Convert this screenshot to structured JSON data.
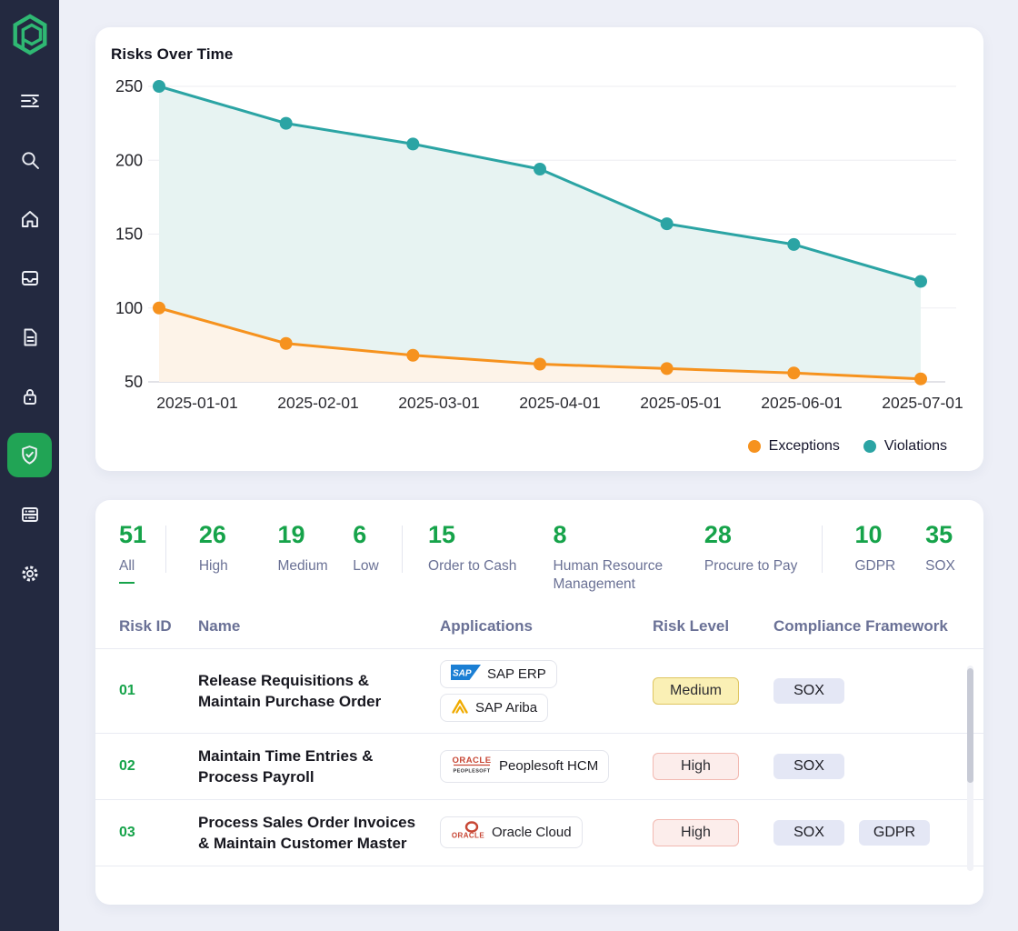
{
  "colors": {
    "sidebar_bg": "#232940",
    "active_green": "#21a455",
    "logo_green": "#2fb873",
    "stat_green": "#16a34a",
    "muted_label": "#6a7195",
    "exceptions_orange": "#f6921e",
    "violations_teal": "#2ba4a4",
    "orange_fill": "#fdf3e8",
    "teal_fill": "#e7f3f2",
    "badge_medium_bg": "#faf0b5",
    "badge_medium_border": "#dfc661",
    "badge_high_bg": "#fcedeb",
    "badge_high_border": "#f2b9b1",
    "badge_framework_bg": "#e4e7f5"
  },
  "sidebar": {
    "logo": "hexagon-logo",
    "items": [
      {
        "icon": "menu-collapse-icon",
        "active": false
      },
      {
        "icon": "search-icon",
        "active": false
      },
      {
        "icon": "home-icon",
        "active": false
      },
      {
        "icon": "inbox-icon",
        "active": false
      },
      {
        "icon": "document-icon",
        "active": false
      },
      {
        "icon": "lock-icon",
        "active": false
      },
      {
        "icon": "shield-check-icon",
        "active": true
      },
      {
        "icon": "server-list-icon",
        "active": false
      },
      {
        "icon": "settings-gear-icon",
        "active": false
      }
    ]
  },
  "chart_card": {
    "title": "Risks Over Time"
  },
  "chart_data": {
    "type": "line",
    "x": [
      "2025-01-01",
      "2025-02-01",
      "2025-03-01",
      "2025-04-01",
      "2025-05-01",
      "2025-06-01",
      "2025-07-01"
    ],
    "series": [
      {
        "name": "Violations",
        "color": "#2ba4a4",
        "fill": "#e7f3f2",
        "values": [
          250,
          225,
          211,
          194,
          157,
          143,
          118
        ]
      },
      {
        "name": "Exceptions",
        "color": "#f6921e",
        "fill": "#fdf3e8",
        "values": [
          100,
          76,
          68,
          62,
          59,
          56,
          52
        ]
      }
    ],
    "legend": [
      {
        "label": "Exceptions",
        "color": "#f6921e"
      },
      {
        "label": "Violations",
        "color": "#2ba4a4"
      }
    ],
    "ylim": [
      50,
      250
    ],
    "yticks": [
      50,
      100,
      150,
      200,
      250
    ],
    "grid": true,
    "legend_position": "bottom-right",
    "title": "Risks Over Time",
    "xlabel": "",
    "ylabel": ""
  },
  "stats": {
    "groups": [
      {
        "items": [
          {
            "value": "51",
            "label": "All",
            "active": true
          }
        ]
      },
      {
        "items": [
          {
            "value": "26",
            "label": "High"
          },
          {
            "value": "19",
            "label": "Medium"
          },
          {
            "value": "6",
            "label": "Low"
          }
        ]
      },
      {
        "items": [
          {
            "value": "15",
            "label": "Order to Cash"
          },
          {
            "value": "8",
            "label": "Human Resource Management"
          },
          {
            "value": "28",
            "label": "Procure to Pay"
          }
        ]
      },
      {
        "items": [
          {
            "value": "10",
            "label": "GDPR"
          },
          {
            "value": "35",
            "label": "SOX"
          }
        ]
      }
    ]
  },
  "table": {
    "columns": [
      "Risk ID",
      "Name",
      "Applications",
      "Risk Level",
      "Compliance Framework"
    ],
    "rows": [
      {
        "risk_id": "01",
        "name": "Release Requisitions & Maintain Purchase Order",
        "applications": [
          {
            "name": "SAP ERP",
            "logo": "sap-logo"
          },
          {
            "name": "SAP Ariba",
            "logo": "sap-ariba-logo"
          }
        ],
        "risk_level": "Medium",
        "frameworks": [
          "SOX"
        ]
      },
      {
        "risk_id": "02",
        "name": "Maintain Time Entries & Process Payroll",
        "applications": [
          {
            "name": "Peoplesoft HCM",
            "logo": "oracle-peoplesoft-logo"
          }
        ],
        "risk_level": "High",
        "frameworks": [
          "SOX"
        ]
      },
      {
        "risk_id": "03",
        "name": "Process Sales Order Invoices & Maintain Customer Master",
        "applications": [
          {
            "name": "Oracle Cloud",
            "logo": "oracle-cloud-logo"
          }
        ],
        "risk_level": "High",
        "frameworks": [
          "SOX",
          "GDPR"
        ]
      }
    ]
  }
}
